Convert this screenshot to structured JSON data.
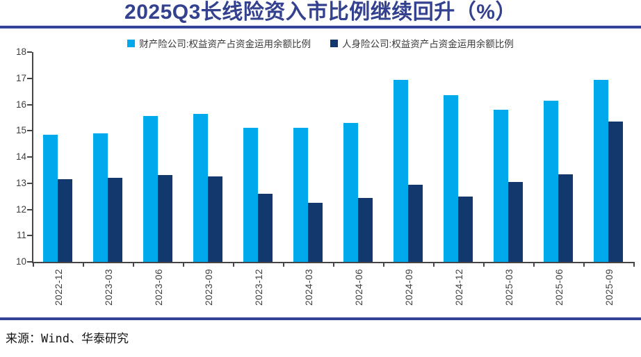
{
  "header": {
    "title": "2025Q3长线险资入市比例继续回升（%）"
  },
  "footer": {
    "source": "来源：Wind、华泰研究"
  },
  "colors": {
    "title": "#33418F",
    "rule": "#334397",
    "series1": "#00A9EC",
    "series2": "#13386E",
    "axis": "#464646",
    "tick_label": "#3F3F3F"
  },
  "chart_data": {
    "type": "bar",
    "title": "2025Q3长线险资入市比例继续回升（%）",
    "categories": [
      "2022-12",
      "2023-03",
      "2023-06",
      "2023-09",
      "2023-12",
      "2024-03",
      "2024-06",
      "2024-09",
      "2024-12",
      "2025-03",
      "2025-06",
      "2025-09"
    ],
    "series": [
      {
        "name": "财产险公司:权益资产占资金运用余额比例",
        "color": "#00A9EC",
        "values": [
          14.85,
          14.9,
          15.55,
          15.65,
          15.1,
          15.1,
          15.3,
          16.95,
          16.35,
          15.8,
          16.15,
          16.95
        ]
      },
      {
        "name": "人身险公司:权益资产占资金运用余额比例",
        "color": "#13386E",
        "values": [
          13.15,
          13.2,
          13.3,
          13.25,
          12.6,
          12.25,
          12.45,
          12.95,
          12.5,
          13.05,
          13.35,
          15.35
        ]
      }
    ],
    "xlabel": "",
    "ylabel": "",
    "ylim": [
      10,
      18
    ],
    "yticks": [
      10,
      11,
      12,
      13,
      14,
      15,
      16,
      17,
      18
    ],
    "legend_position": "top",
    "grid": false
  }
}
